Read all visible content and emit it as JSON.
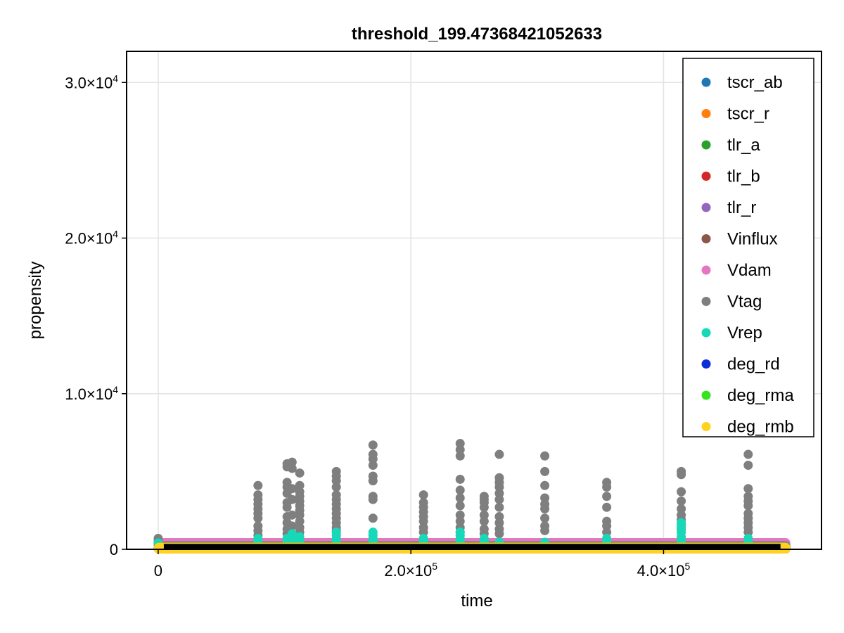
{
  "chart_data": {
    "type": "scatter",
    "title": "threshold_199.47368421052633",
    "xlabel": "time",
    "ylabel": "propensity",
    "xlim": [
      -25000,
      525000
    ],
    "ylim": [
      0,
      32000
    ],
    "grid": true,
    "legend_position": "top-right",
    "x_ticks": [
      {
        "value": 0,
        "mantissa": "0",
        "exp": ""
      },
      {
        "value": 200000,
        "mantissa": "2.0×10",
        "exp": "5"
      },
      {
        "value": 400000,
        "mantissa": "4.0×10",
        "exp": "5"
      }
    ],
    "y_ticks": [
      {
        "value": 0,
        "mantissa": "0",
        "exp": ""
      },
      {
        "value": 10000,
        "mantissa": "1.0×10",
        "exp": "4"
      },
      {
        "value": 20000,
        "mantissa": "2.0×10",
        "exp": "4"
      },
      {
        "value": 30000,
        "mantissa": "3.0×10",
        "exp": "4"
      }
    ],
    "series": [
      {
        "name": "tscr_ab",
        "color": "#1f77b4",
        "band": [
          0,
          150
        ],
        "points": []
      },
      {
        "name": "tscr_r",
        "color": "#ff7f0e",
        "band": [
          0,
          150
        ],
        "points": []
      },
      {
        "name": "tlr_a",
        "color": "#2ca02c",
        "band": [
          0,
          150
        ],
        "points": []
      },
      {
        "name": "tlr_b",
        "color": "#d62728",
        "band": [
          0,
          150
        ],
        "points": []
      },
      {
        "name": "tlr_r",
        "color": "#9467bd",
        "band": [
          0,
          150
        ],
        "points": []
      },
      {
        "name": "Vinflux",
        "color": "#8c564b",
        "band": [
          0,
          150
        ],
        "points": []
      },
      {
        "name": "Vdam",
        "color": "#e377c2",
        "band": [
          0,
          450
        ],
        "points": []
      },
      {
        "name": "Vtag",
        "color": "#7f7f7f",
        "band": [
          0,
          250
        ],
        "points": [
          [
            0,
            300
          ],
          [
            0,
            500
          ],
          [
            0,
            700
          ],
          [
            79000,
            4100
          ],
          [
            79000,
            3500
          ],
          [
            79000,
            3200
          ],
          [
            79000,
            2900
          ],
          [
            79000,
            2600
          ],
          [
            79000,
            2300
          ],
          [
            79000,
            2000
          ],
          [
            79000,
            1500
          ],
          [
            79000,
            1200
          ],
          [
            79000,
            900
          ],
          [
            102000,
            5300
          ],
          [
            102000,
            5500
          ],
          [
            102000,
            4300
          ],
          [
            102000,
            4000
          ],
          [
            102000,
            3600
          ],
          [
            102000,
            3000
          ],
          [
            102000,
            2700
          ],
          [
            102000,
            2100
          ],
          [
            102000,
            1700
          ],
          [
            102000,
            1300
          ],
          [
            102000,
            1000
          ],
          [
            106000,
            5600
          ],
          [
            106000,
            5200
          ],
          [
            106000,
            3900
          ],
          [
            106000,
            3200
          ],
          [
            106000,
            2200
          ],
          [
            106000,
            1500
          ],
          [
            106000,
            1000
          ],
          [
            112000,
            4900
          ],
          [
            112000,
            4100
          ],
          [
            112000,
            3700
          ],
          [
            112000,
            3400
          ],
          [
            112000,
            3100
          ],
          [
            112000,
            2800
          ],
          [
            112000,
            2500
          ],
          [
            112000,
            2200
          ],
          [
            112000,
            1800
          ],
          [
            112000,
            1400
          ],
          [
            112000,
            1100
          ],
          [
            141000,
            5000
          ],
          [
            141000,
            4700
          ],
          [
            141000,
            4400
          ],
          [
            141000,
            4000
          ],
          [
            141000,
            3500
          ],
          [
            141000,
            3200
          ],
          [
            141000,
            2900
          ],
          [
            141000,
            2600
          ],
          [
            141000,
            2300
          ],
          [
            141000,
            2000
          ],
          [
            141000,
            1700
          ],
          [
            141000,
            1400
          ],
          [
            141000,
            1200
          ],
          [
            170000,
            6700
          ],
          [
            170000,
            6100
          ],
          [
            170000,
            5800
          ],
          [
            170000,
            5400
          ],
          [
            170000,
            4700
          ],
          [
            170000,
            4400
          ],
          [
            170000,
            3400
          ],
          [
            170000,
            3200
          ],
          [
            170000,
            2000
          ],
          [
            210000,
            3500
          ],
          [
            210000,
            3000
          ],
          [
            210000,
            2700
          ],
          [
            210000,
            2400
          ],
          [
            210000,
            2100
          ],
          [
            210000,
            1800
          ],
          [
            210000,
            1400
          ],
          [
            210000,
            1100
          ],
          [
            239000,
            6800
          ],
          [
            239000,
            6400
          ],
          [
            239000,
            6000
          ],
          [
            239000,
            4500
          ],
          [
            239000,
            3800
          ],
          [
            239000,
            3300
          ],
          [
            239000,
            2800
          ],
          [
            239000,
            2200
          ],
          [
            239000,
            1800
          ],
          [
            239000,
            1400
          ],
          [
            239000,
            1100
          ],
          [
            258000,
            3400
          ],
          [
            258000,
            3200
          ],
          [
            258000,
            3000
          ],
          [
            258000,
            2700
          ],
          [
            258000,
            2200
          ],
          [
            258000,
            1800
          ],
          [
            258000,
            1300
          ],
          [
            258000,
            1000
          ],
          [
            270000,
            6100
          ],
          [
            270000,
            4600
          ],
          [
            270000,
            4300
          ],
          [
            270000,
            4000
          ],
          [
            270000,
            3600
          ],
          [
            270000,
            3200
          ],
          [
            270000,
            2700
          ],
          [
            270000,
            2100
          ],
          [
            270000,
            1700
          ],
          [
            270000,
            1300
          ],
          [
            270000,
            1000
          ],
          [
            306000,
            6000
          ],
          [
            306000,
            5000
          ],
          [
            306000,
            4100
          ],
          [
            306000,
            3300
          ],
          [
            306000,
            2900
          ],
          [
            306000,
            2600
          ],
          [
            306000,
            2000
          ],
          [
            306000,
            1500
          ],
          [
            306000,
            1200
          ],
          [
            355000,
            4300
          ],
          [
            355000,
            4000
          ],
          [
            355000,
            3400
          ],
          [
            355000,
            2700
          ],
          [
            355000,
            1800
          ],
          [
            355000,
            1500
          ],
          [
            355000,
            1100
          ],
          [
            414000,
            5000
          ],
          [
            414000,
            4800
          ],
          [
            414000,
            3700
          ],
          [
            414000,
            3100
          ],
          [
            414000,
            2600
          ],
          [
            414000,
            2200
          ],
          [
            414000,
            1900
          ],
          [
            414000,
            1600
          ],
          [
            414000,
            1300
          ],
          [
            467000,
            6100
          ],
          [
            467000,
            5400
          ],
          [
            467000,
            3900
          ],
          [
            467000,
            3400
          ],
          [
            467000,
            3100
          ],
          [
            467000,
            2800
          ],
          [
            467000,
            2300
          ],
          [
            467000,
            2000
          ],
          [
            467000,
            1700
          ],
          [
            467000,
            1400
          ],
          [
            467000,
            1100
          ]
        ]
      },
      {
        "name": "Vrep",
        "color": "#17d8b8",
        "band": [
          0,
          150
        ],
        "points": [
          [
            0,
            400
          ],
          [
            79000,
            500
          ],
          [
            79000,
            700
          ],
          [
            102000,
            500
          ],
          [
            102000,
            700
          ],
          [
            106000,
            600
          ],
          [
            106000,
            800
          ],
          [
            106000,
            1000
          ],
          [
            112000,
            500
          ],
          [
            112000,
            800
          ],
          [
            141000,
            500
          ],
          [
            141000,
            700
          ],
          [
            141000,
            900
          ],
          [
            141000,
            1100
          ],
          [
            170000,
            500
          ],
          [
            170000,
            700
          ],
          [
            170000,
            900
          ],
          [
            170000,
            1100
          ],
          [
            210000,
            500
          ],
          [
            210000,
            700
          ],
          [
            239000,
            500
          ],
          [
            239000,
            700
          ],
          [
            239000,
            900
          ],
          [
            239000,
            1100
          ],
          [
            258000,
            500
          ],
          [
            258000,
            700
          ],
          [
            270000,
            450
          ],
          [
            306000,
            450
          ],
          [
            355000,
            500
          ],
          [
            355000,
            700
          ],
          [
            414000,
            500
          ],
          [
            414000,
            800
          ],
          [
            414000,
            1100
          ],
          [
            414000,
            1400
          ],
          [
            414000,
            1700
          ],
          [
            467000,
            500
          ],
          [
            467000,
            700
          ]
        ]
      },
      {
        "name": "deg_rd",
        "color": "#0a2ed8",
        "band": [
          0,
          150
        ],
        "points": []
      },
      {
        "name": "deg_rma",
        "color": "#36e320",
        "band": [
          0,
          150
        ],
        "points": []
      },
      {
        "name": "deg_rmb",
        "color": "#ffd21f",
        "band": [
          0,
          150
        ],
        "points": []
      }
    ],
    "black_band": {
      "color": "#000000",
      "range": [
        0,
        350
      ]
    }
  }
}
